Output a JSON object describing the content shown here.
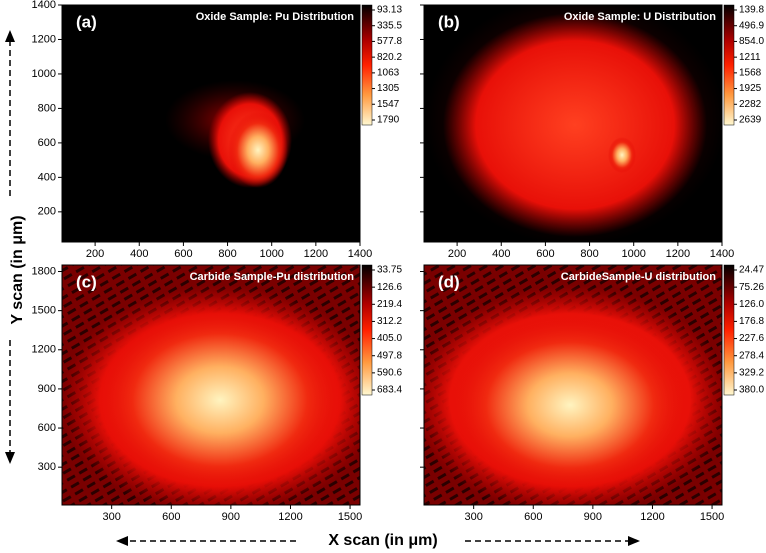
{
  "axes": {
    "xlabel": "X scan (in μm)",
    "ylabel": "Y scan (in μm)"
  },
  "chart_data": [
    {
      "type": "heatmap",
      "panel_label": "(a)",
      "title": "Oxide Sample: Pu Distribution",
      "xlim": [
        50,
        1400
      ],
      "xticks": [
        200,
        400,
        600,
        800,
        1000,
        1200,
        1400
      ],
      "ylim": [
        25,
        1400
      ],
      "yticks": [
        200,
        400,
        600,
        800,
        1000,
        1200,
        1400
      ],
      "ytick_labels": true,
      "clim": [
        93.13,
        1790
      ],
      "colorbar_ticks": [
        93.13,
        335.5,
        577.8,
        820.2,
        1063,
        1305,
        1547,
        1790
      ]
    },
    {
      "type": "heatmap",
      "panel_label": "(b)",
      "title": "Oxide Sample: U Distribution",
      "xlim": [
        50,
        1400
      ],
      "xticks": [
        200,
        400,
        600,
        800,
        1000,
        1200,
        1400
      ],
      "ylim": [
        25,
        1400
      ],
      "yticks": [
        200,
        400,
        600,
        800,
        1000,
        1200,
        1400
      ],
      "ytick_labels": false,
      "clim": [
        139.8,
        2639
      ],
      "colorbar_ticks": [
        139.8,
        496.9,
        {
          "value": 854,
          "label": "854.0"
        },
        1211,
        1568,
        1925,
        2282,
        2639
      ]
    },
    {
      "type": "heatmap",
      "panel_label": "(c)",
      "title": "Carbide Sample-Pu distribution",
      "xlim": [
        50,
        1550
      ],
      "xticks": [
        300,
        600,
        900,
        1200,
        1500
      ],
      "ylim": [
        10,
        1850
      ],
      "yticks": [
        300,
        600,
        900,
        1200,
        1500,
        1800
      ],
      "ytick_labels": true,
      "clim": [
        33.75,
        683.4
      ],
      "colorbar_ticks": [
        33.75,
        126.6,
        219.4,
        312.2,
        {
          "value": 405,
          "label": "405.0"
        },
        497.8,
        590.6,
        683.4
      ]
    },
    {
      "type": "heatmap",
      "panel_label": "(d)",
      "title": "CarbideSample-U distribution",
      "xlim": [
        50,
        1550
      ],
      "xticks": [
        300,
        600,
        900,
        1200,
        1500
      ],
      "ylim": [
        10,
        1850
      ],
      "yticks": [
        300,
        600,
        900,
        1200,
        1500,
        1800
      ],
      "ytick_labels": false,
      "clim": [
        24.47,
        380
      ],
      "colorbar_ticks": [
        24.47,
        75.26,
        {
          "value": 126,
          "label": "126.0"
        },
        176.8,
        227.6,
        278.4,
        329.2,
        {
          "value": 380,
          "label": "380.0"
        }
      ]
    }
  ]
}
